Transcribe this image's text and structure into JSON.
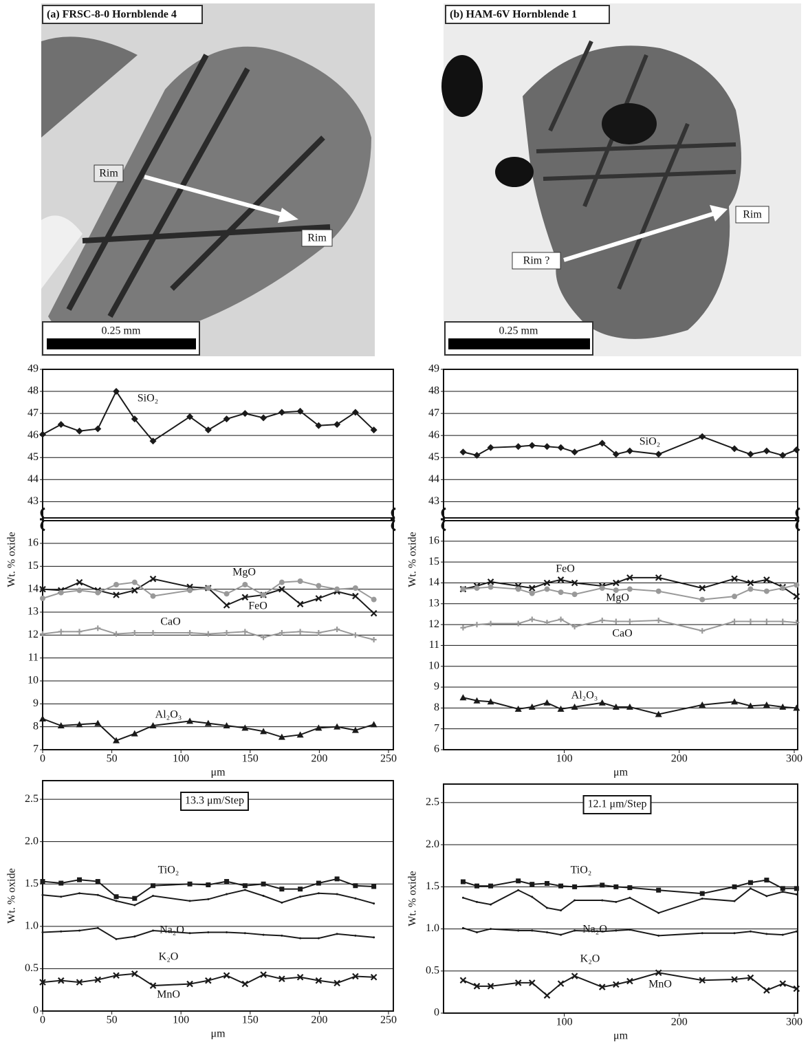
{
  "micrographs": [
    {
      "title": "(a) FRSC-8-0 Hornblende 4",
      "labels": [
        "Rim",
        "Rim"
      ],
      "scale_bar": "0.25 mm"
    },
    {
      "title": "(b) HAM-6V Hornblende 1",
      "labels": [
        "Rim ?",
        "Rim"
      ],
      "scale_bar": "0.25 mm"
    }
  ],
  "chart_data": [
    {
      "type": "line",
      "axis_break": true,
      "xlabel": "μm",
      "ylabel": "Wt. % oxide",
      "grid": true,
      "xlim": [
        0,
        253.5
      ],
      "xticks": [
        0,
        50,
        100,
        150,
        200,
        250
      ],
      "ylim": [
        7,
        17.05
      ],
      "yticks": [
        7,
        8,
        9,
        10,
        11,
        12,
        13,
        14,
        15,
        16
      ],
      "ylim_upper": [
        42.2,
        49
      ],
      "yticks_upper": [
        43,
        44,
        45,
        46,
        47,
        48,
        49
      ],
      "x": [
        0,
        13.3,
        26.6,
        39.9,
        53.2,
        66.5,
        79.8,
        106.4,
        119.7,
        133,
        146.3,
        159.6,
        172.9,
        186.2,
        199.5,
        212.8,
        226.1,
        239.4
      ],
      "series": [
        {
          "name": "SiO₂",
          "color": "#1a1a1a",
          "marker": "diamond",
          "axis": "upper",
          "values": [
            46.05,
            46.5,
            46.2,
            46.3,
            48.0,
            46.75,
            45.75,
            46.85,
            46.25,
            46.75,
            47.0,
            46.8,
            47.05,
            47.1,
            46.45,
            46.5,
            47.05,
            46.25
          ]
        },
        {
          "name": "FeO",
          "color": "#1a1a1a",
          "marker": "x",
          "values": [
            14.0,
            13.95,
            14.3,
            13.95,
            13.75,
            13.95,
            14.45,
            14.1,
            14.05,
            13.3,
            13.65,
            13.75,
            14.0,
            13.35,
            13.6,
            13.9,
            13.7,
            12.95
          ]
        },
        {
          "name": "MgO",
          "color": "#999999",
          "marker": "circle",
          "values": [
            13.6,
            13.85,
            13.95,
            13.85,
            14.2,
            14.3,
            13.7,
            13.95,
            14.05,
            13.8,
            14.2,
            13.75,
            14.3,
            14.35,
            14.15,
            14.0,
            14.05,
            13.55
          ]
        },
        {
          "name": "CaO",
          "color": "#999999",
          "marker": "plus",
          "values": [
            12.05,
            12.15,
            12.15,
            12.3,
            12.05,
            12.1,
            12.1,
            12.1,
            12.05,
            12.1,
            12.15,
            11.9,
            12.1,
            12.15,
            12.1,
            12.25,
            12.0,
            11.8
          ]
        },
        {
          "name": "Al₂O₃",
          "color": "#1a1a1a",
          "marker": "triangle",
          "values": [
            8.35,
            8.05,
            8.1,
            8.15,
            7.4,
            7.7,
            8.05,
            8.25,
            8.15,
            8.05,
            7.95,
            7.8,
            7.55,
            7.65,
            7.95,
            8.0,
            7.85,
            8.1
          ]
        }
      ]
    },
    {
      "type": "line",
      "axis_break": true,
      "xlabel": "μm",
      "ylabel": "Wt. % oxide",
      "grid": true,
      "xlim": [
        -5,
        303
      ],
      "xticks": [
        100,
        200,
        300
      ],
      "ylim": [
        6,
        17.05
      ],
      "yticks": [
        6,
        7,
        8,
        9,
        10,
        11,
        12,
        13,
        14,
        15,
        16
      ],
      "ylim_upper": [
        42.2,
        49
      ],
      "yticks_upper": [
        43,
        44,
        45,
        46,
        47,
        48,
        49
      ],
      "x": [
        12,
        24,
        36,
        60,
        72,
        85,
        97,
        109,
        133,
        145,
        157,
        182,
        220,
        248,
        262,
        276,
        290,
        302
      ],
      "series": [
        {
          "name": "SiO₂",
          "color": "#1a1a1a",
          "marker": "diamond",
          "axis": "upper",
          "values": [
            45.25,
            45.1,
            45.45,
            45.5,
            45.55,
            45.5,
            45.45,
            45.25,
            45.65,
            45.15,
            45.3,
            45.15,
            45.95,
            45.4,
            45.15,
            45.3,
            45.1,
            45.35
          ]
        },
        {
          "name": "FeO",
          "color": "#1a1a1a",
          "marker": "x",
          "values": [
            13.7,
            13.85,
            14.05,
            13.85,
            13.75,
            14.0,
            14.15,
            14.0,
            13.85,
            14.0,
            14.25,
            14.25,
            13.75,
            14.2,
            14.0,
            14.15,
            13.8,
            13.35
          ]
        },
        {
          "name": "MgO",
          "color": "#999999",
          "marker": "circle",
          "values": [
            13.7,
            13.75,
            13.8,
            13.7,
            13.5,
            13.7,
            13.55,
            13.45,
            13.75,
            13.65,
            13.7,
            13.6,
            13.2,
            13.35,
            13.7,
            13.6,
            13.75,
            13.9
          ]
        },
        {
          "name": "CaO",
          "color": "#999999",
          "marker": "plus",
          "values": [
            11.85,
            12.0,
            12.05,
            12.05,
            12.25,
            12.1,
            12.25,
            11.9,
            12.2,
            12.15,
            12.15,
            12.2,
            11.7,
            12.15,
            12.15,
            12.15,
            12.15,
            12.1
          ]
        },
        {
          "name": "Al₂O₃",
          "color": "#1a1a1a",
          "marker": "triangle",
          "values": [
            8.5,
            8.35,
            8.3,
            7.95,
            8.05,
            8.25,
            7.95,
            8.05,
            8.25,
            8.05,
            8.05,
            7.7,
            8.15,
            8.3,
            8.1,
            8.15,
            8.05,
            8.0
          ]
        }
      ]
    },
    {
      "type": "line",
      "xlabel": "μm",
      "ylabel": "Wt. % oxide",
      "grid": true,
      "annotation": "13.3 μm/Step",
      "xlim": [
        0,
        253.5
      ],
      "xticks": [
        0,
        50,
        100,
        150,
        200,
        250
      ],
      "ylim": [
        0,
        2.72
      ],
      "yticks": [
        0,
        0.5,
        {
          "value": 1,
          "label": "1.0"
        },
        {
          "value": 1.5,
          "label": "1.5"
        },
        {
          "value": 2,
          "label": "2.0"
        },
        2.5
      ],
      "x": [
        0,
        13.3,
        26.6,
        39.9,
        53.2,
        66.5,
        79.8,
        106.4,
        119.7,
        133,
        146.3,
        159.6,
        172.9,
        186.2,
        199.5,
        212.8,
        226.1,
        239.4
      ],
      "series": [
        {
          "name": "TiO₂",
          "color": "#1a1a1a",
          "marker": "square",
          "values": [
            1.53,
            1.51,
            1.55,
            1.53,
            1.35,
            1.33,
            1.48,
            1.5,
            1.49,
            1.53,
            1.48,
            1.5,
            1.44,
            1.44,
            1.51,
            1.56,
            1.48,
            1.47
          ]
        },
        {
          "name": "Na₂O",
          "color": "#1a1a1a",
          "marker": "dot",
          "values": [
            1.37,
            1.35,
            1.39,
            1.37,
            1.3,
            1.25,
            1.36,
            1.3,
            1.32,
            1.38,
            1.43,
            1.36,
            1.28,
            1.35,
            1.39,
            1.38,
            1.33,
            1.27
          ]
        },
        {
          "name": "K₂O",
          "color": "#1a1a1a",
          "marker": "dot",
          "values": [
            0.93,
            0.94,
            0.95,
            0.98,
            0.85,
            0.88,
            0.95,
            0.92,
            0.93,
            0.93,
            0.92,
            0.9,
            0.89,
            0.86,
            0.86,
            0.91,
            0.89,
            0.87
          ]
        },
        {
          "name": "MnO",
          "color": "#1a1a1a",
          "marker": "x",
          "values": [
            0.34,
            0.36,
            0.34,
            0.37,
            0.42,
            0.44,
            0.3,
            0.32,
            0.36,
            0.42,
            0.32,
            0.43,
            0.38,
            0.4,
            0.36,
            0.33,
            0.41,
            0.4
          ]
        }
      ]
    },
    {
      "type": "line",
      "xlabel": "μm",
      "ylabel": "Wt. % oxide",
      "grid": true,
      "annotation": "12.1 μm/Step",
      "xlim": [
        -5,
        303
      ],
      "xticks": [
        100,
        200,
        300
      ],
      "ylim": [
        0,
        2.72
      ],
      "yticks": [
        0,
        0.5,
        {
          "value": 1,
          "label": "1.0"
        },
        {
          "value": 1.5,
          "label": "1.5"
        },
        {
          "value": 2,
          "label": "2.0"
        },
        2.5
      ],
      "x": [
        12,
        24,
        36,
        60,
        72,
        85,
        97,
        109,
        133,
        145,
        157,
        182,
        220,
        248,
        262,
        276,
        290,
        302
      ],
      "series": [
        {
          "name": "TiO₂",
          "color": "#1a1a1a",
          "marker": "square",
          "values": [
            1.56,
            1.51,
            1.51,
            1.57,
            1.53,
            1.54,
            1.51,
            1.5,
            1.52,
            1.5,
            1.49,
            1.46,
            1.42,
            1.5,
            1.55,
            1.58,
            1.48,
            1.48
          ]
        },
        {
          "name": "Na₂O",
          "color": "#1a1a1a",
          "marker": "dot",
          "values": [
            1.37,
            1.32,
            1.29,
            1.46,
            1.38,
            1.25,
            1.22,
            1.34,
            1.34,
            1.32,
            1.37,
            1.19,
            1.36,
            1.33,
            1.48,
            1.39,
            1.44,
            1.41
          ]
        },
        {
          "name": "K₂O",
          "color": "#1a1a1a",
          "marker": "dot",
          "values": [
            1.01,
            0.96,
            1.0,
            0.98,
            0.98,
            0.96,
            0.93,
            0.98,
            0.97,
            0.98,
            0.99,
            0.92,
            0.95,
            0.95,
            0.97,
            0.94,
            0.93,
            0.97
          ]
        },
        {
          "name": "MnO",
          "color": "#1a1a1a",
          "marker": "x",
          "values": [
            0.39,
            0.32,
            0.32,
            0.36,
            0.36,
            0.21,
            0.35,
            0.44,
            0.31,
            0.34,
            0.38,
            0.48,
            0.39,
            0.4,
            0.42,
            0.27,
            0.35,
            0.29
          ]
        }
      ]
    }
  ]
}
